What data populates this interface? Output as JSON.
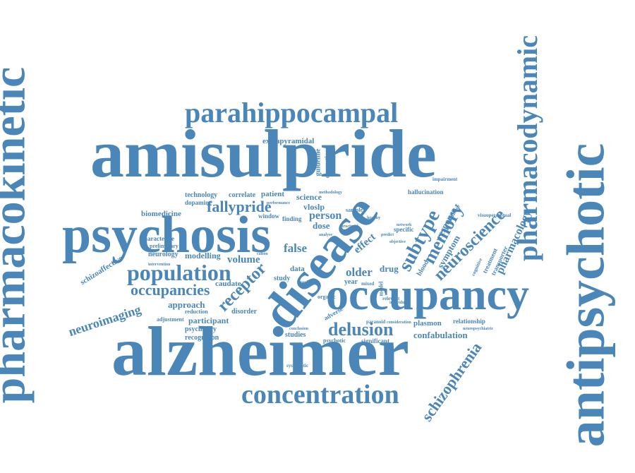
{
  "words": [
    {
      "text": "amisulpride",
      "color": "#4a86b8"
    },
    {
      "text": "alzheimer",
      "color": "#4a86b8"
    },
    {
      "text": "psychosis",
      "color": "#4a86b8"
    },
    {
      "text": "pharmacokinetic",
      "color": "#4a86b8"
    },
    {
      "text": "antipsychotic",
      "color": "#4a86b8"
    },
    {
      "text": "pharmacodynamic",
      "color": "#4a86b8"
    },
    {
      "text": "disease",
      "color": "#4a86b8"
    },
    {
      "text": "occupancy",
      "color": "#4a86b8"
    },
    {
      "text": "parahippocampal",
      "color": "#4a86b8"
    },
    {
      "text": "concentration",
      "color": "#4a86b8"
    },
    {
      "text": "population",
      "color": "#4a86b8"
    },
    {
      "text": "occupancies",
      "color": "#4a86b8"
    },
    {
      "text": "fallypride",
      "color": "#4a86b8"
    },
    {
      "text": "receptor",
      "color": "#4a86b8"
    },
    {
      "text": "delusion",
      "color": "#4a86b8"
    },
    {
      "text": "subtype",
      "color": "#4a86b8"
    },
    {
      "text": "memory",
      "color": "#4a86b8"
    },
    {
      "text": "neuroscience",
      "color": "#4a86b8"
    },
    {
      "text": "pharmacology",
      "color": "#4a86b8"
    },
    {
      "text": "schizophrenia",
      "color": "#4a86b8"
    },
    {
      "text": "neuroimaging",
      "color": "#4a86b8"
    },
    {
      "text": "confabulation",
      "color": "#4a86b8"
    },
    {
      "text": "extrapyramidal",
      "color": "#4a86b8"
    },
    {
      "text": "technology",
      "color": "#4a86b8"
    },
    {
      "text": "correlate",
      "color": "#4a86b8"
    },
    {
      "text": "patient",
      "color": "#4a86b8"
    },
    {
      "text": "science",
      "color": "#4a86b8"
    },
    {
      "text": "vloslp",
      "color": "#4a86b8"
    },
    {
      "text": "person",
      "color": "#4a86b8"
    },
    {
      "text": "dose",
      "color": "#4a86b8"
    },
    {
      "text": "biomedicine",
      "color": "#4a86b8"
    },
    {
      "text": "dopamine",
      "color": "#4a86b8"
    },
    {
      "text": "characterise",
      "color": "#4a86b8"
    },
    {
      "text": "schizoaffective",
      "color": "#4a86b8"
    },
    {
      "text": "neurology",
      "color": "#4a86b8"
    },
    {
      "text": "modelling",
      "color": "#4a86b8"
    },
    {
      "text": "volume",
      "color": "#4a86b8"
    },
    {
      "text": "false",
      "color": "#4a86b8"
    },
    {
      "text": "approach",
      "color": "#4a86b8"
    },
    {
      "text": "caudate",
      "color": "#4a86b8"
    },
    {
      "text": "participant",
      "color": "#4a86b8"
    },
    {
      "text": "psychiatry",
      "color": "#4a86b8"
    },
    {
      "text": "recognition",
      "color": "#4a86b8"
    },
    {
      "text": "older",
      "color": "#4a86b8"
    },
    {
      "text": "effect",
      "color": "#4a86b8"
    },
    {
      "text": "drug",
      "color": "#4a86b8"
    },
    {
      "text": "blood",
      "color": "#4a86b8"
    },
    {
      "text": "symptom",
      "color": "#4a86b8"
    },
    {
      "text": "response",
      "color": "#4a86b8"
    },
    {
      "text": "treatment",
      "color": "#4a86b8"
    },
    {
      "text": "transporter",
      "color": "#4a86b8"
    },
    {
      "text": "relationship",
      "color": "#4a86b8"
    },
    {
      "text": "plasmon",
      "color": "#4a86b8"
    },
    {
      "text": "studies",
      "color": "#4a86b8"
    },
    {
      "text": "study",
      "color": "#4a86b8"
    },
    {
      "text": "year",
      "color": "#4a86b8"
    },
    {
      "text": "data",
      "color": "#4a86b8"
    },
    {
      "text": "disorder",
      "color": "#4a86b8"
    },
    {
      "text": "reduction",
      "color": "#4a86b8"
    },
    {
      "text": "adjustment",
      "color": "#4a86b8"
    },
    {
      "text": "preliminary",
      "color": "#4a86b8"
    },
    {
      "text": "guideline",
      "color": "#4a86b8"
    },
    {
      "text": "dementia",
      "color": "#4a86b8"
    },
    {
      "text": "hallucination",
      "color": "#4a86b8"
    },
    {
      "text": "impairment",
      "color": "#4a86b8"
    },
    {
      "text": "visuoperceptual",
      "color": "#4a86b8"
    },
    {
      "text": "cognitive",
      "color": "#4a86b8"
    },
    {
      "text": "neuropsychiatric",
      "color": "#4a86b8"
    },
    {
      "text": "significant",
      "color": "#4a86b8"
    },
    {
      "text": "psychotic",
      "color": "#4a86b8"
    },
    {
      "text": "systematic",
      "color": "#4a86b8"
    },
    {
      "text": "window",
      "color": "#4a86b8"
    },
    {
      "text": "finding",
      "color": "#4a86b8"
    },
    {
      "text": "specific",
      "color": "#4a86b8"
    },
    {
      "text": "sample",
      "color": "#4a86b8"
    },
    {
      "text": "healthy",
      "color": "#4a86b8"
    },
    {
      "text": "review",
      "color": "#4a86b8"
    },
    {
      "text": "organic",
      "color": "#4a86b8"
    },
    {
      "text": "mixed",
      "color": "#4a86b8"
    },
    {
      "text": "model",
      "color": "#4a86b8"
    },
    {
      "text": "adverse",
      "color": "#4a86b8"
    },
    {
      "text": "relevant",
      "color": "#4a86b8"
    },
    {
      "text": "individual",
      "color": "#4a86b8"
    },
    {
      "text": "paranoid",
      "color": "#4a86b8"
    },
    {
      "text": "conclusion",
      "color": "#4a86b8"
    },
    {
      "text": "consideration",
      "color": "#4a86b8"
    },
    {
      "text": "pharmacy",
      "color": "#4a86b8"
    },
    {
      "text": "analyse",
      "color": "#4a86b8"
    },
    {
      "text": "predict",
      "color": "#4a86b8"
    },
    {
      "text": "cation",
      "color": "#4a86b8"
    },
    {
      "text": "intervention",
      "color": "#4a86b8"
    },
    {
      "text": "objective",
      "color": "#4a86b8"
    },
    {
      "text": "network",
      "color": "#4a86b8"
    },
    {
      "text": "structural",
      "color": "#4a86b8"
    },
    {
      "text": "performance",
      "color": "#4a86b8"
    },
    {
      "text": "methodology",
      "color": "#4a86b8"
    }
  ]
}
